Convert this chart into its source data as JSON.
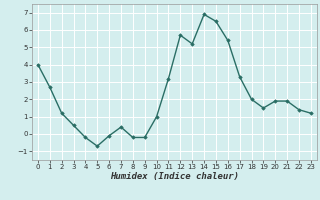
{
  "title": "",
  "xlabel": "Humidex (Indice chaleur)",
  "ylabel": "",
  "x": [
    0,
    1,
    2,
    3,
    4,
    5,
    6,
    7,
    8,
    9,
    10,
    11,
    12,
    13,
    14,
    15,
    16,
    17,
    18,
    19,
    20,
    21,
    22,
    23
  ],
  "y": [
    4.0,
    2.7,
    1.2,
    0.5,
    -0.2,
    -0.7,
    -0.1,
    0.4,
    -0.2,
    -0.2,
    1.0,
    3.2,
    5.7,
    5.2,
    6.9,
    6.5,
    5.4,
    3.3,
    2.0,
    1.5,
    1.9,
    1.9,
    1.4,
    1.2
  ],
  "line_color": "#2a6e65",
  "marker": "D",
  "marker_size": 1.8,
  "line_width": 1.0,
  "bg_color": "#d4eeee",
  "grid_color": "#ffffff",
  "ylim": [
    -1.5,
    7.5
  ],
  "xlim": [
    -0.5,
    23.5
  ],
  "yticks": [
    -1,
    0,
    1,
    2,
    3,
    4,
    5,
    6,
    7
  ],
  "xticks": [
    0,
    1,
    2,
    3,
    4,
    5,
    6,
    7,
    8,
    9,
    10,
    11,
    12,
    13,
    14,
    15,
    16,
    17,
    18,
    19,
    20,
    21,
    22,
    23
  ],
  "tick_fontsize": 5.0,
  "xlabel_fontsize": 6.5,
  "tick_color": "#333333",
  "spine_color": "#999999"
}
